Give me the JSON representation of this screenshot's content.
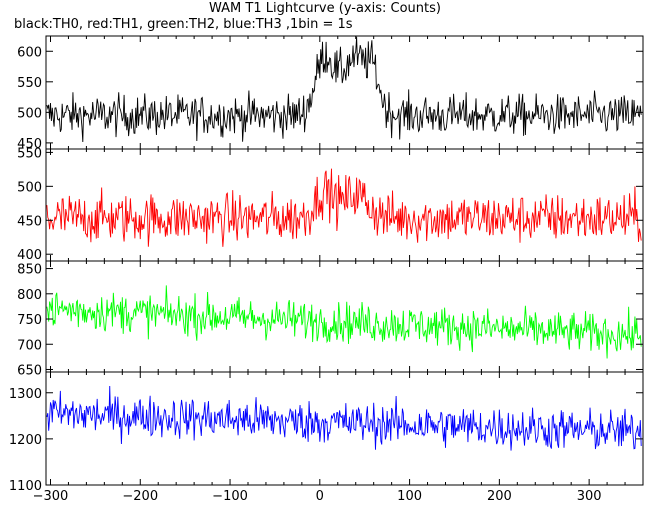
{
  "title": "WAM T1 Lightcurve (y-axis: Counts)",
  "subtitle": "black:TH0, red:TH1, green:TH2, blue:TH3 ,1bin = 1s",
  "chart_data": {
    "type": "line",
    "xlim": [
      -305,
      360
    ],
    "xticks": [
      -300,
      -200,
      -100,
      0,
      100,
      200,
      300
    ],
    "grid": false,
    "legend": "none (series colors described in subtitle)",
    "panels": [
      {
        "name": "TH0",
        "color": "#000000",
        "ylim": [
          440,
          625
        ],
        "yticks": [
          450,
          500,
          550,
          600
        ],
        "baseline": 495,
        "noise": 22,
        "features": [
          {
            "center": 5,
            "width": 10,
            "amp": 90
          },
          {
            "center": 40,
            "width": 16,
            "amp": 95
          },
          {
            "center": 60,
            "width": 6,
            "amp": 40
          }
        ]
      },
      {
        "name": "TH1",
        "color": "#ff0000",
        "ylim": [
          390,
          555
        ],
        "yticks": [
          400,
          450,
          500,
          550
        ],
        "baseline": 453,
        "noise": 24,
        "features": [
          {
            "center": 5,
            "width": 10,
            "amp": 40
          },
          {
            "center": 40,
            "width": 14,
            "amp": 35
          }
        ]
      },
      {
        "name": "TH2",
        "color": "#00ff00",
        "ylim": [
          645,
          865
        ],
        "yticks": [
          650,
          700,
          750,
          800,
          850
        ],
        "baseline_start": 770,
        "baseline_end": 718,
        "noise": 26,
        "features": []
      },
      {
        "name": "TH3",
        "color": "#0000ff",
        "ylim": [
          1100,
          1345
        ],
        "yticks": [
          1100,
          1200,
          1300
        ],
        "baseline_start": 1255,
        "baseline_end": 1215,
        "noise": 30,
        "features": []
      }
    ]
  }
}
